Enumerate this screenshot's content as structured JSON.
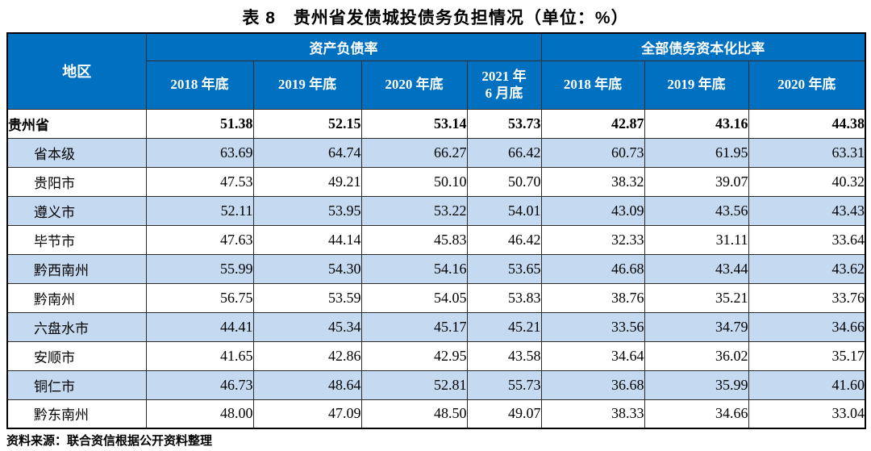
{
  "title": "表 8　贵州省发债城投债务负担情况（单位：%）",
  "source_note": "资料来源：联合资信根据公开资料整理",
  "colors": {
    "header_bg": "#0070C0",
    "header_text": "#FFFFFF",
    "row_alt": "#C5D9F1",
    "body_text": "#000000"
  },
  "table": {
    "region_header": "地区",
    "groups": [
      {
        "label": "资产负债率",
        "columns": [
          "2018 年底",
          "2019 年底",
          "2020 年底",
          "2021 年\n6 月底"
        ]
      },
      {
        "label": "全部债务资本化比率",
        "columns": [
          "2018 年底",
          "2019 年底",
          "2020 年底"
        ]
      }
    ],
    "rows": [
      {
        "region": "贵州省",
        "bold": true,
        "indent": false,
        "shaded": false,
        "values": [
          "51.38",
          "52.15",
          "53.14",
          "53.73",
          "42.87",
          "43.16",
          "44.38"
        ]
      },
      {
        "region": "省本级",
        "bold": false,
        "indent": true,
        "shaded": true,
        "values": [
          "63.69",
          "64.74",
          "66.27",
          "66.42",
          "60.73",
          "61.95",
          "63.31"
        ]
      },
      {
        "region": "贵阳市",
        "bold": false,
        "indent": true,
        "shaded": false,
        "values": [
          "47.53",
          "49.21",
          "50.10",
          "50.70",
          "38.32",
          "39.07",
          "40.32"
        ]
      },
      {
        "region": "遵义市",
        "bold": false,
        "indent": true,
        "shaded": true,
        "values": [
          "52.11",
          "53.95",
          "53.22",
          "54.01",
          "43.09",
          "43.56",
          "43.43"
        ]
      },
      {
        "region": "毕节市",
        "bold": false,
        "indent": true,
        "shaded": false,
        "values": [
          "47.63",
          "44.14",
          "45.83",
          "46.42",
          "32.33",
          "31.11",
          "33.64"
        ]
      },
      {
        "region": "黔西南州",
        "bold": false,
        "indent": true,
        "shaded": true,
        "values": [
          "55.99",
          "54.30",
          "54.16",
          "53.65",
          "46.68",
          "43.44",
          "43.62"
        ]
      },
      {
        "region": "黔南州",
        "bold": false,
        "indent": true,
        "shaded": false,
        "values": [
          "56.75",
          "53.59",
          "54.05",
          "53.83",
          "38.76",
          "35.21",
          "33.76"
        ]
      },
      {
        "region": "六盘水市",
        "bold": false,
        "indent": true,
        "shaded": true,
        "values": [
          "44.41",
          "45.34",
          "45.17",
          "45.21",
          "33.56",
          "34.79",
          "34.66"
        ]
      },
      {
        "region": "安顺市",
        "bold": false,
        "indent": true,
        "shaded": false,
        "values": [
          "41.65",
          "42.86",
          "42.95",
          "43.58",
          "34.64",
          "36.02",
          "35.17"
        ]
      },
      {
        "region": "铜仁市",
        "bold": false,
        "indent": true,
        "shaded": true,
        "values": [
          "46.73",
          "48.64",
          "52.81",
          "55.73",
          "36.68",
          "35.99",
          "41.60"
        ]
      },
      {
        "region": "黔东南州",
        "bold": false,
        "indent": true,
        "shaded": false,
        "values": [
          "48.00",
          "47.09",
          "48.50",
          "49.07",
          "38.33",
          "34.66",
          "33.04"
        ]
      }
    ]
  }
}
